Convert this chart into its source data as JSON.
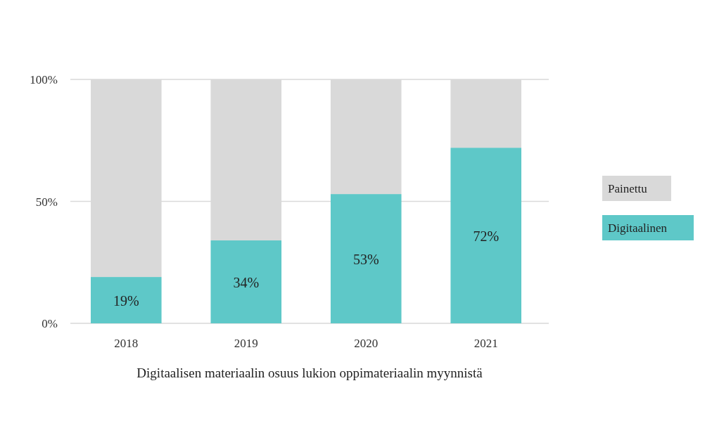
{
  "chart_data": {
    "type": "bar",
    "stacked": true,
    "xlabel": "Digitaalisen materiaalin osuus lukion oppimateriaalin myynnistä",
    "categories": [
      "2018",
      "2019",
      "2020",
      "2021"
    ],
    "series": [
      {
        "name": "Digitaalinen",
        "color": "#5ec8c8",
        "values": [
          19,
          34,
          53,
          72
        ],
        "value_labels": [
          "19%",
          "34%",
          "53%",
          "72%"
        ]
      },
      {
        "name": "Painettu",
        "color": "#d9d9d9",
        "values": [
          81,
          66,
          47,
          28
        ]
      }
    ],
    "ylim": [
      0,
      100
    ],
    "yticks": [
      {
        "value": 0,
        "label": "0%"
      },
      {
        "value": 50,
        "label": "50%"
      },
      {
        "value": 100,
        "label": "100%"
      }
    ],
    "grid": "y",
    "legend": "right"
  }
}
